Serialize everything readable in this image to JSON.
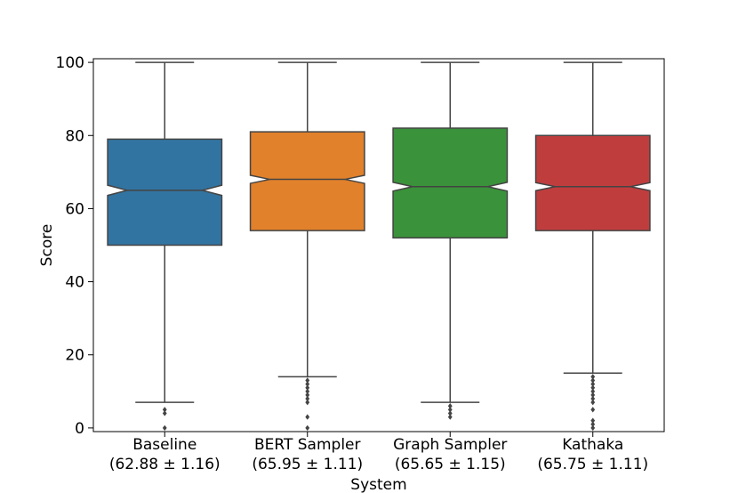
{
  "chart_data": {
    "type": "box",
    "title": "",
    "xlabel": "System",
    "ylabel": "Score",
    "ylim": [
      -1,
      101
    ],
    "yticks": [
      0,
      20,
      40,
      60,
      80,
      100
    ],
    "grid": false,
    "notched": true,
    "categories": [
      {
        "name": "Baseline",
        "sublabel": "(62.88 ± 1.16)",
        "color": "#3274a1",
        "q1": 50,
        "median": 65,
        "q3": 79,
        "whisker_low": 7,
        "whisker_high": 100,
        "notch_low": 63.6,
        "notch_high": 66.4,
        "fliers": [
          0,
          4,
          5
        ]
      },
      {
        "name": "BERT Sampler",
        "sublabel": "(65.95 ± 1.11)",
        "color": "#e1812c",
        "q1": 54,
        "median": 68,
        "q3": 81,
        "whisker_low": 14,
        "whisker_high": 100,
        "notch_low": 66.9,
        "notch_high": 69.1,
        "fliers": [
          0,
          3,
          7,
          8,
          9,
          10,
          11,
          12,
          13
        ]
      },
      {
        "name": "Graph Sampler",
        "sublabel": "(65.65 ± 1.15)",
        "color": "#3a923a",
        "q1": 52,
        "median": 66,
        "q3": 82,
        "whisker_low": 7,
        "whisker_high": 100,
        "notch_low": 64.8,
        "notch_high": 67.2,
        "fliers": [
          3,
          4,
          5,
          6
        ]
      },
      {
        "name": "Kathaka",
        "sublabel": "(65.75 ± 1.11)",
        "color": "#c03d3e",
        "q1": 54,
        "median": 66,
        "q3": 80,
        "whisker_low": 15,
        "whisker_high": 100,
        "notch_low": 64.9,
        "notch_high": 67.1,
        "fliers": [
          0,
          1,
          2,
          5,
          7,
          8,
          9,
          10,
          11,
          12,
          13,
          14
        ]
      }
    ]
  }
}
